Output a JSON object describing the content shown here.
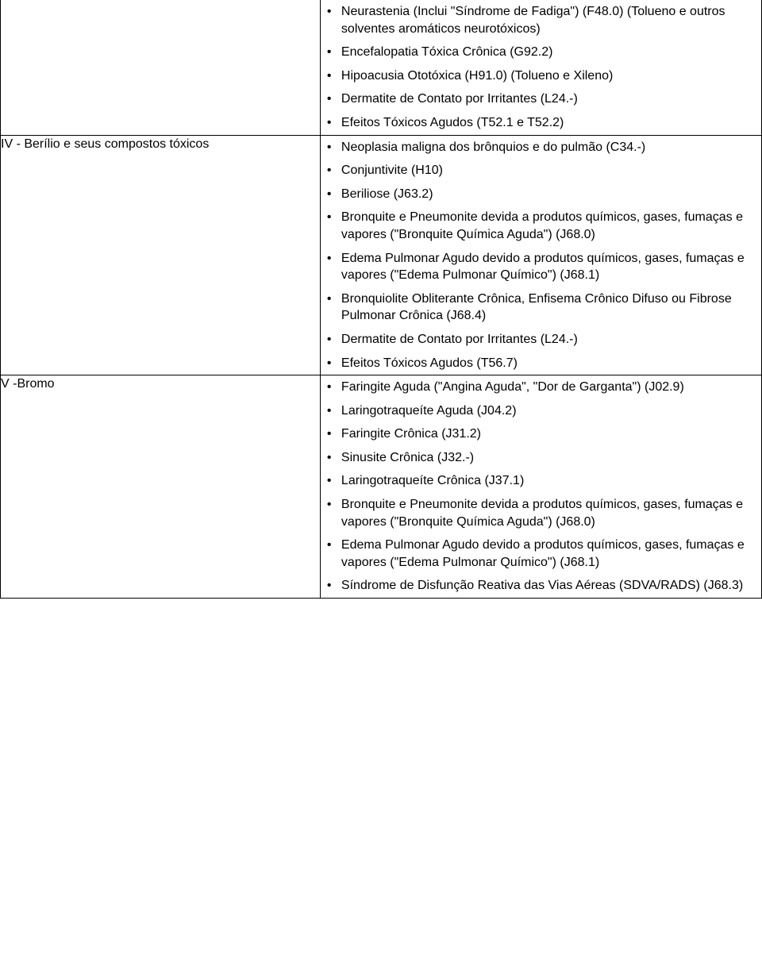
{
  "rows": [
    {
      "agent": "",
      "items": [
        "Neurastenia (Inclui \"Síndrome de Fadiga\") (F48.0) (Tolueno e outros solventes aromáticos neurotóxicos)",
        "Encefalopatia Tóxica Crônica (G92.2)",
        "Hipoacusia Ototóxica (H91.0) (Tolueno e Xileno)",
        "Dermatite de Contato por Irritantes (L24.-)",
        "Efeitos Tóxicos Agudos (T52.1 e T52.2)"
      ]
    },
    {
      "agent": "IV - Berílio e seus compostos tóxicos",
      "items": [
        "Neoplasia maligna dos brônquios e do pulmão (C34.-)",
        "Conjuntivite (H10)",
        "Beriliose (J63.2)",
        "Bronquite e Pneumonite devida a produtos químicos, gases, fumaças e vapores (\"Bronquite Química Aguda\") (J68.0)",
        "Edema Pulmonar Agudo devido a produtos químicos, gases, fumaças e vapores (\"Edema Pulmonar Químico\") (J68.1)",
        "Bronquiolite Obliterante Crônica, Enfisema Crônico Difuso ou Fibrose Pulmonar Crônica (J68.4)",
        "Dermatite de Contato por Irritantes (L24.-)",
        "Efeitos Tóxicos Agudos (T56.7)"
      ]
    },
    {
      "agent": "V -Bromo",
      "items": [
        "Faringite Aguda (\"Angina Aguda\", \"Dor de Garganta\") (J02.9)",
        "Laringotraqueíte Aguda (J04.2)",
        "Faringite Crônica (J31.2)",
        "Sinusite Crônica (J32.-)",
        "Laringotraqueíte Crônica (J37.1)",
        "Bronquite e Pneumonite devida a produtos químicos, gases, fumaças e vapores (\"Bronquite Química Aguda\") (J68.0)",
        "Edema Pulmonar Agudo devido a produtos químicos, gases, fumaças e vapores (\"Edema Pulmonar Químico\") (J68.1)",
        "Síndrome de Disfunção Reativa das Vias Aéreas (SDVA/RADS) (J68.3)"
      ]
    }
  ]
}
